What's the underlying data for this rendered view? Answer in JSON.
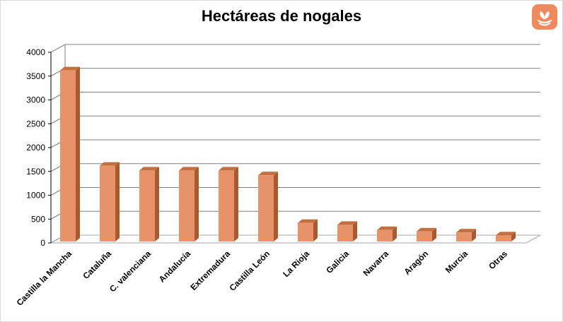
{
  "chart_data": {
    "type": "bar",
    "title": "Hectáreas de nogales",
    "xlabel": "",
    "ylabel": "",
    "categories": [
      "Castilla la Mancha",
      "Cataluña",
      "C. valenciana",
      "Andalucía",
      "Extremadura",
      "Castilla León",
      "La Rioja",
      "Galicia",
      "Navarra",
      "Aragón",
      "Murcia",
      "Otras"
    ],
    "values": [
      3620,
      1620,
      1520,
      1520,
      1520,
      1420,
      420,
      380,
      270,
      240,
      220,
      160
    ],
    "ylim": [
      0,
      4000
    ],
    "yticks": [
      0,
      500,
      1000,
      1500,
      2000,
      2500,
      3000,
      3500,
      4000
    ],
    "grid": true,
    "legend": "none",
    "colors": {
      "bar_front": "#e8926a",
      "bar_side": "#a85a30",
      "bar_top": "#c2703f",
      "grid": "#808080",
      "floor": "#a6a6a6"
    }
  },
  "logo": {
    "icon": "walnut-logo-icon",
    "color": "#ef8a5e"
  }
}
